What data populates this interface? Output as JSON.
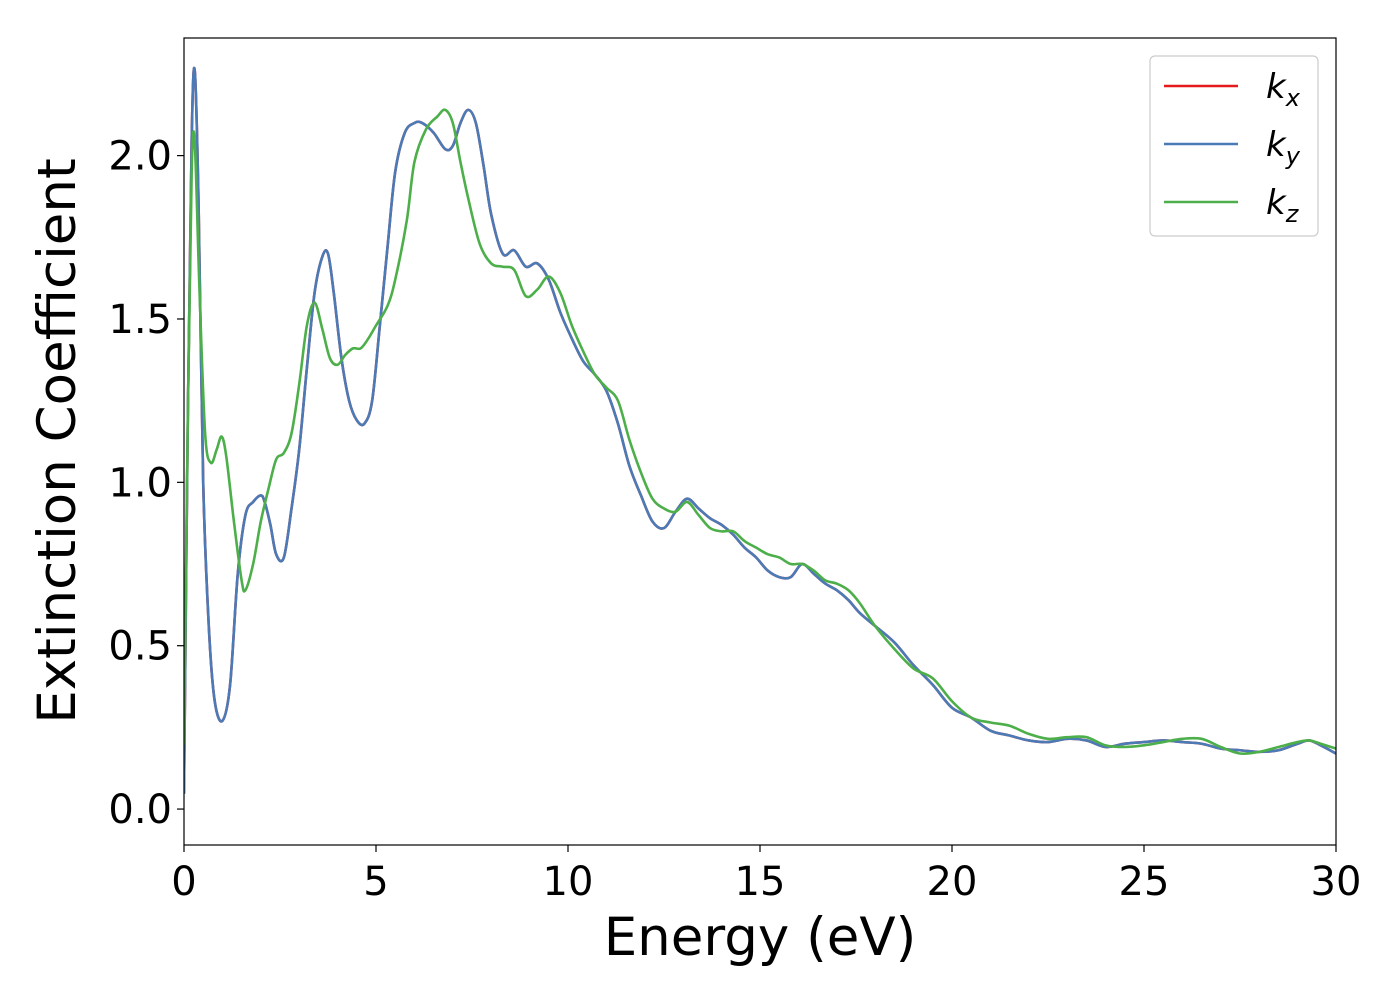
{
  "chart_data": {
    "type": "line",
    "title": "",
    "xlabel": "Energy (eV)",
    "ylabel": "Extinction Coefficient",
    "xlim": [
      0,
      30
    ],
    "ylim": [
      -0.11,
      2.36
    ],
    "xticks": [
      0,
      5,
      10,
      15,
      20,
      25,
      30
    ],
    "xtick_labels": [
      "0",
      "5",
      "10",
      "15",
      "20",
      "25",
      "30"
    ],
    "yticks": [
      0.0,
      0.5,
      1.0,
      1.5,
      2.0
    ],
    "ytick_labels": [
      "0.0",
      "0.5",
      "1.0",
      "1.5",
      "2.0"
    ],
    "grid": false,
    "legend_placement": "top-right",
    "series": [
      {
        "name": "k",
        "subscript": "x",
        "color": "#e41a1c",
        "x": [
          0,
          0.1,
          0.2,
          0.28,
          0.38,
          0.5,
          0.65,
          0.8,
          1.0,
          1.2,
          1.4,
          1.6,
          1.8,
          2.0,
          2.1,
          2.25,
          2.4,
          2.6,
          2.8,
          3.0,
          3.2,
          3.4,
          3.6,
          3.75,
          3.9,
          4.1,
          4.3,
          4.5,
          4.7,
          4.9,
          5.1,
          5.3,
          5.5,
          5.75,
          6.0,
          6.2,
          6.5,
          6.8,
          7.0,
          7.2,
          7.4,
          7.6,
          7.8,
          8.0,
          8.3,
          8.6,
          8.9,
          9.2,
          9.5,
          9.8,
          10.1,
          10.4,
          10.7,
          11.0,
          11.3,
          11.6,
          11.9,
          12.2,
          12.5,
          12.8,
          13.1,
          13.4,
          13.7,
          14.0,
          14.3,
          14.6,
          14.9,
          15.2,
          15.5,
          15.8,
          16.1,
          16.4,
          16.7,
          17.0,
          17.3,
          17.6,
          18.0,
          18.5,
          19.0,
          19.5,
          20.0,
          20.5,
          21.0,
          21.5,
          22.0,
          22.5,
          23.0,
          23.5,
          24.0,
          24.5,
          25.0,
          25.5,
          26.0,
          26.5,
          27.0,
          27.5,
          28.0,
          28.5,
          29.0,
          29.3,
          29.6,
          30.0
        ],
        "y": [
          0.05,
          1.2,
          2.05,
          2.26,
          1.85,
          1.0,
          0.55,
          0.33,
          0.27,
          0.38,
          0.72,
          0.9,
          0.94,
          0.96,
          0.94,
          0.87,
          0.78,
          0.77,
          0.92,
          1.1,
          1.35,
          1.58,
          1.69,
          1.7,
          1.58,
          1.38,
          1.25,
          1.19,
          1.18,
          1.25,
          1.48,
          1.72,
          1.95,
          2.07,
          2.1,
          2.1,
          2.07,
          2.02,
          2.03,
          2.1,
          2.14,
          2.1,
          1.97,
          1.82,
          1.7,
          1.71,
          1.66,
          1.67,
          1.62,
          1.52,
          1.44,
          1.37,
          1.33,
          1.28,
          1.18,
          1.05,
          0.96,
          0.88,
          0.86,
          0.91,
          0.95,
          0.92,
          0.89,
          0.87,
          0.84,
          0.8,
          0.77,
          0.73,
          0.71,
          0.71,
          0.75,
          0.72,
          0.69,
          0.67,
          0.64,
          0.6,
          0.56,
          0.51,
          0.44,
          0.38,
          0.31,
          0.28,
          0.24,
          0.225,
          0.21,
          0.205,
          0.215,
          0.21,
          0.19,
          0.2,
          0.205,
          0.21,
          0.205,
          0.2,
          0.185,
          0.18,
          0.175,
          0.18,
          0.2,
          0.21,
          0.195,
          0.17
        ]
      },
      {
        "name": "k",
        "subscript": "y",
        "color": "#4a7bb7",
        "x": [
          0,
          0.1,
          0.2,
          0.28,
          0.38,
          0.5,
          0.65,
          0.8,
          1.0,
          1.2,
          1.4,
          1.6,
          1.8,
          2.0,
          2.1,
          2.25,
          2.4,
          2.6,
          2.8,
          3.0,
          3.2,
          3.4,
          3.6,
          3.75,
          3.9,
          4.1,
          4.3,
          4.5,
          4.7,
          4.9,
          5.1,
          5.3,
          5.5,
          5.75,
          6.0,
          6.2,
          6.5,
          6.8,
          7.0,
          7.2,
          7.4,
          7.6,
          7.8,
          8.0,
          8.3,
          8.6,
          8.9,
          9.2,
          9.5,
          9.8,
          10.1,
          10.4,
          10.7,
          11.0,
          11.3,
          11.6,
          11.9,
          12.2,
          12.5,
          12.8,
          13.1,
          13.4,
          13.7,
          14.0,
          14.3,
          14.6,
          14.9,
          15.2,
          15.5,
          15.8,
          16.1,
          16.4,
          16.7,
          17.0,
          17.3,
          17.6,
          18.0,
          18.5,
          19.0,
          19.5,
          20.0,
          20.5,
          21.0,
          21.5,
          22.0,
          22.5,
          23.0,
          23.5,
          24.0,
          24.5,
          25.0,
          25.5,
          26.0,
          26.5,
          27.0,
          27.5,
          28.0,
          28.5,
          29.0,
          29.3,
          29.6,
          30.0
        ],
        "y": [
          0.05,
          1.2,
          2.05,
          2.26,
          1.85,
          1.0,
          0.55,
          0.33,
          0.27,
          0.38,
          0.72,
          0.9,
          0.94,
          0.96,
          0.94,
          0.87,
          0.78,
          0.77,
          0.92,
          1.1,
          1.35,
          1.58,
          1.69,
          1.7,
          1.58,
          1.38,
          1.25,
          1.19,
          1.18,
          1.25,
          1.48,
          1.72,
          1.95,
          2.07,
          2.1,
          2.1,
          2.07,
          2.02,
          2.03,
          2.1,
          2.14,
          2.1,
          1.97,
          1.82,
          1.7,
          1.71,
          1.66,
          1.67,
          1.62,
          1.52,
          1.44,
          1.37,
          1.33,
          1.28,
          1.18,
          1.05,
          0.96,
          0.88,
          0.86,
          0.91,
          0.95,
          0.92,
          0.89,
          0.87,
          0.84,
          0.8,
          0.77,
          0.73,
          0.71,
          0.71,
          0.75,
          0.72,
          0.69,
          0.67,
          0.64,
          0.6,
          0.56,
          0.51,
          0.44,
          0.38,
          0.31,
          0.28,
          0.24,
          0.225,
          0.21,
          0.205,
          0.215,
          0.21,
          0.19,
          0.2,
          0.205,
          0.21,
          0.205,
          0.2,
          0.185,
          0.18,
          0.175,
          0.18,
          0.2,
          0.21,
          0.195,
          0.17
        ]
      },
      {
        "name": "k",
        "subscript": "z",
        "color": "#4daf4a",
        "x": [
          0,
          0.1,
          0.2,
          0.28,
          0.4,
          0.55,
          0.7,
          0.85,
          0.98,
          1.1,
          1.3,
          1.5,
          1.6,
          1.8,
          2.0,
          2.2,
          2.4,
          2.6,
          2.8,
          3.0,
          3.2,
          3.4,
          3.6,
          3.8,
          4.0,
          4.2,
          4.4,
          4.6,
          4.8,
          5.0,
          5.3,
          5.5,
          5.8,
          6.0,
          6.3,
          6.6,
          6.8,
          7.0,
          7.2,
          7.4,
          7.7,
          8.0,
          8.3,
          8.6,
          8.9,
          9.2,
          9.5,
          9.8,
          10.1,
          10.4,
          10.7,
          11.0,
          11.3,
          11.6,
          11.9,
          12.2,
          12.5,
          12.8,
          13.1,
          13.4,
          13.7,
          14.0,
          14.3,
          14.6,
          14.9,
          15.2,
          15.5,
          15.8,
          16.1,
          16.4,
          16.7,
          17.0,
          17.3,
          17.6,
          18.0,
          18.5,
          19.0,
          19.5,
          20.0,
          20.5,
          21.0,
          21.5,
          22.0,
          22.5,
          23.0,
          23.5,
          24.0,
          24.5,
          25.0,
          25.5,
          26.0,
          26.5,
          27.0,
          27.5,
          28.0,
          28.5,
          29.0,
          29.3,
          29.6,
          30.0
        ],
        "y": [
          0.2,
          1.2,
          1.95,
          2.04,
          1.6,
          1.15,
          1.06,
          1.1,
          1.14,
          1.08,
          0.88,
          0.7,
          0.67,
          0.75,
          0.88,
          0.98,
          1.07,
          1.09,
          1.15,
          1.3,
          1.48,
          1.55,
          1.47,
          1.38,
          1.36,
          1.39,
          1.41,
          1.41,
          1.44,
          1.48,
          1.54,
          1.62,
          1.8,
          1.98,
          2.08,
          2.12,
          2.14,
          2.1,
          1.98,
          1.87,
          1.73,
          1.67,
          1.66,
          1.65,
          1.57,
          1.59,
          1.63,
          1.58,
          1.48,
          1.4,
          1.33,
          1.29,
          1.25,
          1.13,
          1.03,
          0.95,
          0.92,
          0.91,
          0.94,
          0.9,
          0.86,
          0.85,
          0.85,
          0.82,
          0.8,
          0.78,
          0.77,
          0.75,
          0.75,
          0.73,
          0.7,
          0.69,
          0.67,
          0.63,
          0.56,
          0.49,
          0.43,
          0.4,
          0.33,
          0.28,
          0.265,
          0.255,
          0.23,
          0.215,
          0.22,
          0.22,
          0.195,
          0.19,
          0.195,
          0.205,
          0.215,
          0.215,
          0.19,
          0.17,
          0.175,
          0.19,
          0.205,
          0.21,
          0.2,
          0.185
        ]
      }
    ]
  }
}
